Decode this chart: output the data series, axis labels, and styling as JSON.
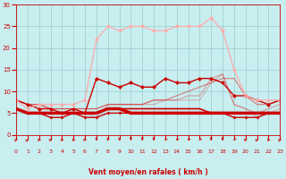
{
  "xlabel": "Vent moyen/en rafales ( km/h )",
  "xlim": [
    0,
    23
  ],
  "ylim": [
    0,
    30
  ],
  "xticks": [
    0,
    1,
    2,
    3,
    4,
    5,
    6,
    7,
    8,
    9,
    10,
    11,
    12,
    13,
    14,
    15,
    16,
    17,
    18,
    19,
    20,
    21,
    22,
    23
  ],
  "yticks": [
    0,
    5,
    10,
    15,
    20,
    25,
    30
  ],
  "background_color": "#c8eef0",
  "grid_color": "#99cccb",
  "series": [
    {
      "x": [
        0,
        1,
        2,
        3,
        4,
        5,
        6,
        7,
        8,
        9,
        10,
        11,
        12,
        13,
        14,
        15,
        16,
        17,
        18,
        19,
        20,
        21,
        22,
        23
      ],
      "y": [
        6,
        5,
        5,
        5,
        5,
        5,
        5,
        5,
        6,
        6,
        5,
        5,
        5,
        5,
        5,
        5,
        5,
        5,
        5,
        5,
        5,
        5,
        5,
        5
      ],
      "color": "#cc0000",
      "lw": 2.5,
      "marker": null,
      "alpha": 1.0
    },
    {
      "x": [
        0,
        1,
        2,
        3,
        4,
        5,
        6,
        7,
        8,
        9,
        10,
        11,
        12,
        13,
        14,
        15,
        16,
        17,
        18,
        19,
        20,
        21,
        22,
        23
      ],
      "y": [
        6,
        5,
        5,
        5,
        5,
        5,
        5,
        5,
        6,
        6,
        6,
        6,
        6,
        6,
        6,
        6,
        6,
        5,
        5,
        5,
        5,
        5,
        5,
        5
      ],
      "color": "#cc0000",
      "lw": 1.2,
      "marker": null,
      "alpha": 1.0
    },
    {
      "x": [
        0,
        1,
        2,
        3,
        4,
        5,
        6,
        7,
        8,
        9,
        10,
        11,
        12,
        13,
        14,
        15,
        16,
        17,
        18,
        19,
        20,
        21,
        22,
        23
      ],
      "y": [
        8,
        7,
        7,
        6,
        6,
        6,
        6,
        6,
        7,
        7,
        7,
        7,
        8,
        8,
        9,
        10,
        11,
        12,
        13,
        13,
        9,
        7,
        7,
        8
      ],
      "color": "#dd2222",
      "lw": 0.8,
      "marker": null,
      "alpha": 0.55
    },
    {
      "x": [
        0,
        1,
        2,
        3,
        4,
        5,
        6,
        7,
        8,
        9,
        10,
        11,
        12,
        13,
        14,
        15,
        16,
        17,
        18,
        19,
        20,
        21,
        22,
        23
      ],
      "y": [
        8,
        7,
        7,
        6,
        6,
        6,
        6,
        6,
        7,
        7,
        7,
        7,
        8,
        8,
        8,
        9,
        9,
        13,
        14,
        7,
        6,
        5,
        6,
        7
      ],
      "color": "#dd2222",
      "lw": 0.8,
      "marker": null,
      "alpha": 0.4
    },
    {
      "x": [
        0,
        1,
        2,
        3,
        4,
        5,
        6,
        7,
        8,
        9,
        10,
        11,
        12,
        13,
        14,
        15,
        16,
        17,
        18,
        19,
        20,
        21,
        22,
        23
      ],
      "y": [
        8,
        7,
        7,
        6,
        6,
        6,
        5,
        4,
        7,
        7,
        7,
        7,
        7,
        8,
        8,
        8,
        8,
        12,
        14,
        7,
        6,
        4,
        5,
        6
      ],
      "color": "#dd2222",
      "lw": 0.8,
      "marker": null,
      "alpha": 0.3
    },
    {
      "x": [
        0,
        1,
        2,
        3,
        4,
        5,
        6,
        7,
        8,
        9,
        10,
        11,
        12,
        13,
        14,
        15,
        16,
        17,
        18,
        19,
        20,
        21,
        22,
        23
      ],
      "y": [
        6,
        5,
        5,
        4,
        4,
        5,
        4,
        4,
        5,
        5,
        5,
        5,
        5,
        5,
        5,
        5,
        5,
        5,
        5,
        4,
        4,
        4,
        5,
        5
      ],
      "color": "#cc0000",
      "lw": 1.0,
      "marker": "D",
      "ms": 2.0,
      "alpha": 1.0
    },
    {
      "x": [
        0,
        1,
        2,
        3,
        4,
        5,
        6,
        7,
        8,
        9,
        10,
        11,
        12,
        13,
        14,
        15,
        16,
        17,
        18,
        19,
        20,
        21,
        22,
        23
      ],
      "y": [
        8,
        7,
        6,
        6,
        5,
        6,
        5,
        13,
        12,
        11,
        12,
        11,
        11,
        13,
        12,
        12,
        13,
        13,
        12,
        9,
        9,
        8,
        7,
        8
      ],
      "color": "#cc0000",
      "lw": 1.0,
      "marker": "D",
      "ms": 2.5,
      "alpha": 1.0
    },
    {
      "x": [
        0,
        1,
        2,
        3,
        4,
        5,
        6,
        7,
        8,
        9,
        10,
        11,
        12,
        13,
        14,
        15,
        16,
        17,
        18,
        19,
        20,
        21,
        22,
        23
      ],
      "y": [
        8,
        6,
        7,
        7,
        7,
        7,
        8,
        22,
        25,
        24,
        25,
        25,
        24,
        24,
        25,
        25,
        25,
        27,
        24,
        15,
        9,
        8,
        8,
        8
      ],
      "color": "#ffaaaa",
      "lw": 1.0,
      "marker": "D",
      "ms": 2.5,
      "alpha": 0.9
    }
  ],
  "wind_angles": [
    45,
    30,
    90,
    60,
    90,
    90,
    130,
    180,
    180,
    180,
    180,
    180,
    180,
    200,
    200,
    200,
    200,
    180,
    180,
    200,
    60,
    45,
    90,
    45
  ]
}
